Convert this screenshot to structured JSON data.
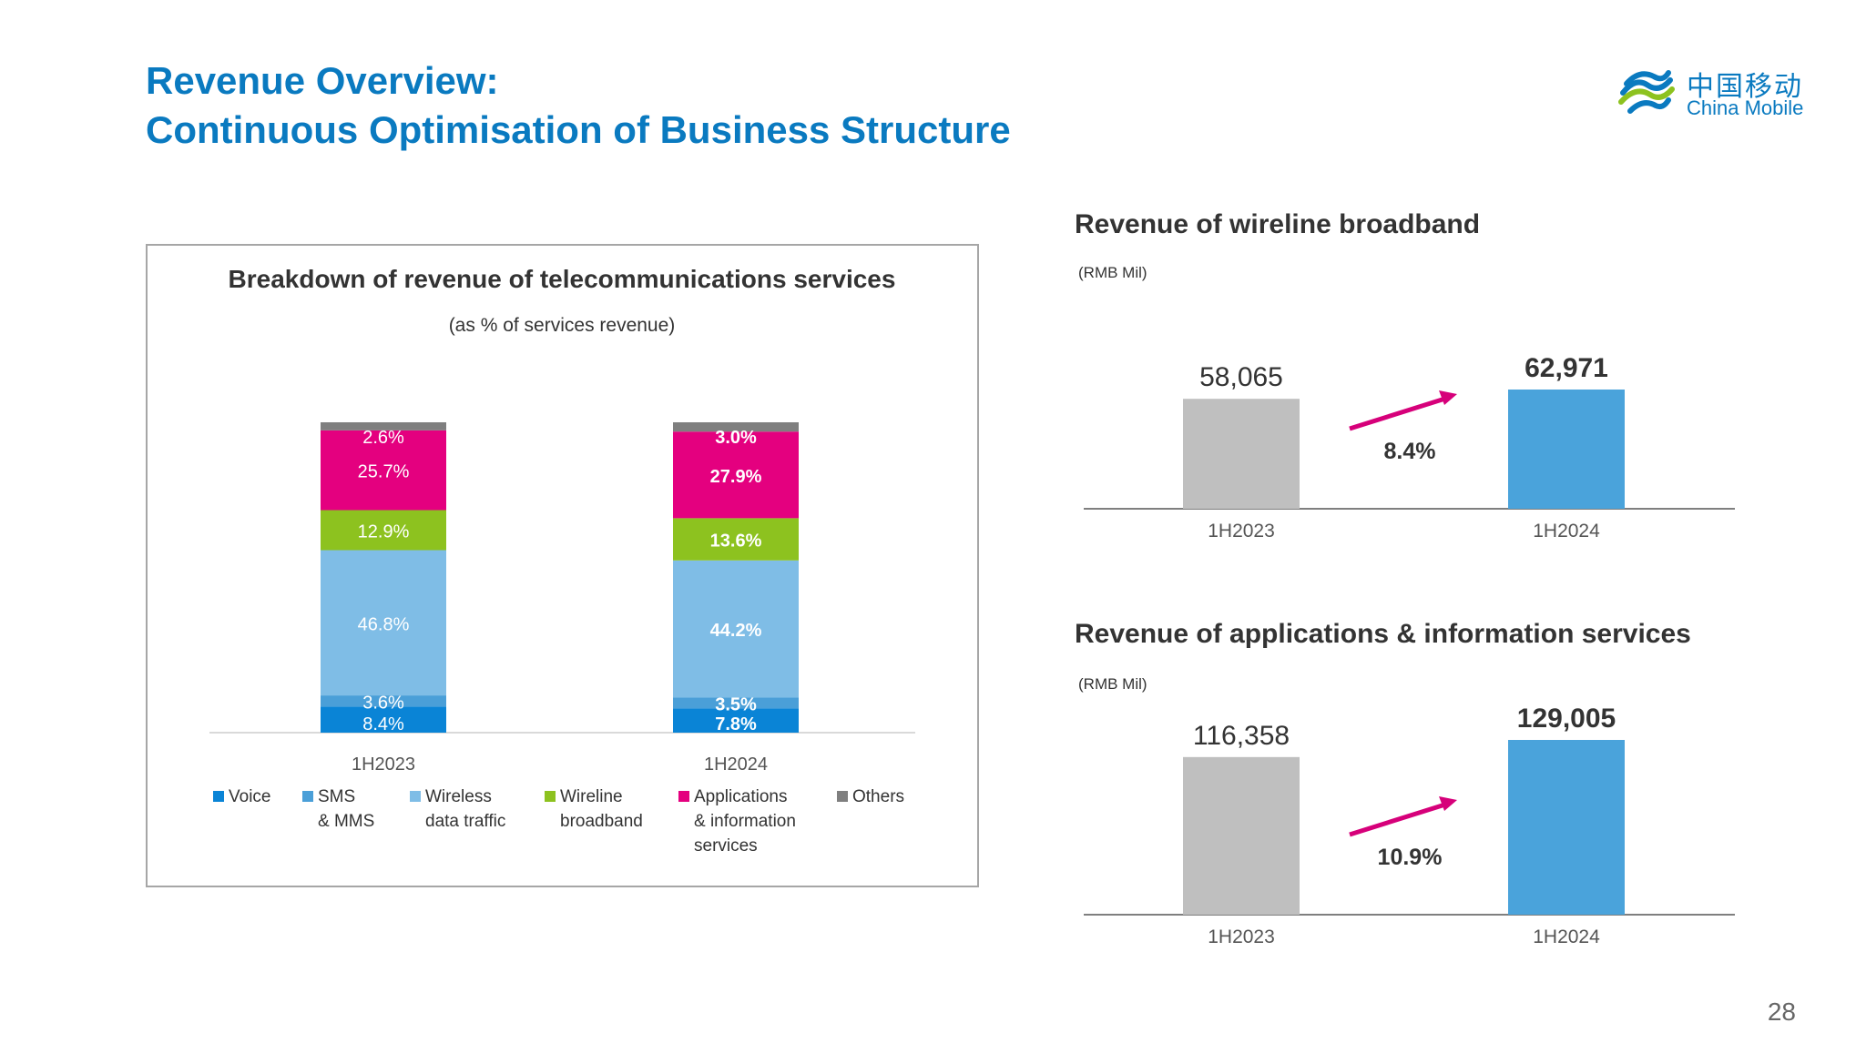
{
  "header": {
    "title_line1": "Revenue Overview:",
    "title_line2": "Continuous Optimisation of Business Structure"
  },
  "logo": {
    "cn": "中国移动",
    "en": "China Mobile",
    "icon": "china-mobile-logo-icon"
  },
  "page_number": "28",
  "colors": {
    "title": "#0a7ac0",
    "voice": "#0a84d6",
    "sms": "#4a9fd8",
    "wireless": "#7fbde6",
    "wireline": "#8dc21f",
    "applications": "#e4007f",
    "others": "#7f7f7f",
    "bar_gray": "#bfbfbf",
    "bar_blue": "#4aa3db",
    "arrow": "#d6007a"
  },
  "chart_data": [
    {
      "type": "bar",
      "stacked": true,
      "title": "Breakdown of revenue of telecommunications services",
      "subtitle": "(as % of services revenue)",
      "categories": [
        "1H2023",
        "1H2024"
      ],
      "series": [
        {
          "name": "Voice",
          "values": [
            8.4,
            7.8
          ],
          "labels": [
            "8.4%",
            "7.8%"
          ]
        },
        {
          "name": "SMS & MMS",
          "values": [
            3.6,
            3.5
          ],
          "labels": [
            "3.6%",
            "3.5%"
          ]
        },
        {
          "name": "Wireless data traffic",
          "values": [
            46.8,
            44.2
          ],
          "labels": [
            "46.8%",
            "44.2%"
          ]
        },
        {
          "name": "Wireline broadband",
          "values": [
            12.9,
            13.6
          ],
          "labels": [
            "12.9%",
            "13.6%"
          ]
        },
        {
          "name": "Applications & information services",
          "values": [
            25.7,
            27.9
          ],
          "labels": [
            "25.7%",
            "27.9%"
          ]
        },
        {
          "name": "Others",
          "values": [
            2.6,
            3.0
          ],
          "labels": [
            "2.6%",
            "3.0%"
          ]
        }
      ],
      "legend_lines": [
        [
          "Voice"
        ],
        [
          "SMS",
          "& MMS"
        ],
        [
          "Wireless",
          "data traffic"
        ],
        [
          "Wireline",
          "broadband"
        ],
        [
          "Applications",
          "& information",
          "services"
        ],
        [
          "Others"
        ]
      ],
      "legend_position": "bottom",
      "ylim": [
        0,
        100
      ],
      "grid": false
    },
    {
      "type": "bar",
      "title": "Revenue of wireline broadband",
      "unit": "(RMB Mil)",
      "categories": [
        "1H2023",
        "1H2024"
      ],
      "values": [
        58065,
        62971
      ],
      "value_labels": [
        "58,065",
        "62,971"
      ],
      "growth": "8.4%",
      "ylim": [
        0,
        62971
      ],
      "grid": false
    },
    {
      "type": "bar",
      "title": "Revenue of applications & information services",
      "unit": "(RMB Mil)",
      "categories": [
        "1H2023",
        "1H2024"
      ],
      "values": [
        116358,
        129005
      ],
      "value_labels": [
        "116,358",
        "129,005"
      ],
      "growth": "10.9%",
      "ylim": [
        0,
        129005
      ],
      "grid": false
    }
  ]
}
